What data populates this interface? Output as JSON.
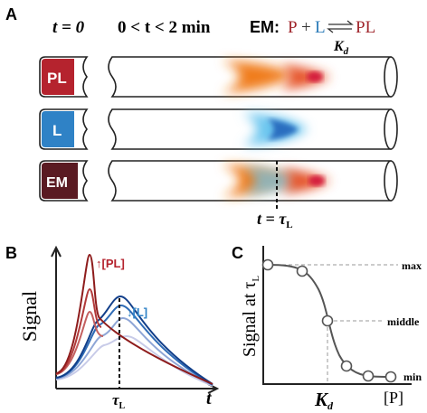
{
  "panel_a": {
    "label": "A",
    "header": {
      "t0": "t = 0",
      "window": "0 < t < 2 min",
      "em_prefix": "EM:",
      "equation": {
        "p": "P",
        "plus": "+",
        "l": "L",
        "pl": "PL",
        "constant": "K",
        "constant_sub": "d"
      }
    },
    "tubes": [
      "PL",
      "L",
      "EM"
    ],
    "time_marker": {
      "text": "t = τ",
      "sub": "L"
    }
  },
  "panel_b": {
    "label": "B",
    "y_label": "Signal",
    "pl_label": "↑[PL]",
    "l_label": "↓[L]",
    "x_tick": "τ",
    "x_tick_sub": "L",
    "x_label": "t"
  },
  "panel_c": {
    "label": "C",
    "y_label": "Signal at τ",
    "y_label_sub": "L",
    "levels": [
      "max",
      "middle",
      "min"
    ],
    "x_tick": "K",
    "x_tick_sub": "d",
    "x_label": "[P]"
  }
}
